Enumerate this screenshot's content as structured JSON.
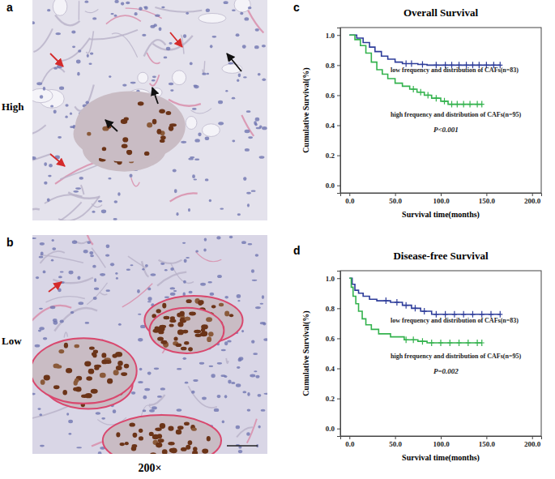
{
  "images": [
    {
      "letter": "a",
      "label": "High"
    },
    {
      "letter": "b",
      "label": "Low"
    }
  ],
  "magnification": "200×",
  "chart_data": [
    {
      "type": "step",
      "panel_label": "c",
      "title": "Overall Survival",
      "x_label": "Survival time(months)",
      "y_label": "Cumulative Survival(%)",
      "annotation": "P<0.001",
      "marker": "plus",
      "grid": false,
      "xlim": [
        -10,
        210
      ],
      "ylim": [
        -0.05,
        1.05
      ],
      "xticks": [
        {
          "value": 0,
          "label": "0.0"
        },
        {
          "value": 50,
          "label": "50.0"
        },
        {
          "value": 100,
          "label": "100.0"
        },
        {
          "value": 150,
          "label": "150.0"
        },
        {
          "value": 200,
          "label": "200.0"
        }
      ],
      "yticks": [
        {
          "value": 0,
          "label": "0.0"
        },
        {
          "value": 0.2,
          "label": "0.2"
        },
        {
          "value": 0.4,
          "label": "0.4"
        },
        {
          "value": 0.6,
          "label": "0.6"
        },
        {
          "value": 0.8,
          "label": "0.8"
        },
        {
          "value": 1,
          "label": "1.0"
        }
      ],
      "series": [
        {
          "name": "low frequency and distribution of CAFs(n=83)",
          "color": "#2e3d9a",
          "x": [
            0,
            8,
            15,
            22,
            28,
            35,
            42,
            50,
            58,
            75,
            85,
            165
          ],
          "values": [
            1.0,
            0.98,
            0.95,
            0.92,
            0.89,
            0.86,
            0.84,
            0.82,
            0.81,
            0.805,
            0.8,
            0.8
          ],
          "censor_x": [
            62,
            68,
            80,
            95,
            105,
            112,
            120,
            128,
            135,
            142,
            150,
            158,
            165
          ],
          "censor_values": [
            0.81,
            0.81,
            0.805,
            0.8,
            0.8,
            0.8,
            0.8,
            0.8,
            0.8,
            0.8,
            0.8,
            0.8,
            0.8
          ]
        },
        {
          "name": "high frequency and distribution of CAFs(n=95)",
          "color": "#33b24d",
          "x": [
            0,
            6,
            12,
            18,
            24,
            30,
            36,
            42,
            50,
            58,
            66,
            74,
            82,
            90,
            100,
            108,
            145
          ],
          "values": [
            1.0,
            0.97,
            0.93,
            0.88,
            0.82,
            0.77,
            0.74,
            0.71,
            0.68,
            0.66,
            0.64,
            0.62,
            0.6,
            0.58,
            0.56,
            0.54,
            0.54
          ],
          "censor_x": [
            70,
            78,
            86,
            95,
            104,
            112,
            118,
            125,
            132,
            140,
            145
          ],
          "censor_values": [
            0.64,
            0.62,
            0.6,
            0.58,
            0.56,
            0.54,
            0.54,
            0.54,
            0.54,
            0.54,
            0.54
          ]
        }
      ]
    },
    {
      "type": "step",
      "panel_label": "d",
      "title": "Disease-free Survival",
      "x_label": "Survival time(months)",
      "y_label": "Cumulative Survival(%)",
      "annotation": "P=0.002",
      "marker": "plus",
      "grid": false,
      "xlim": [
        -10,
        210
      ],
      "ylim": [
        -0.05,
        1.05
      ],
      "xticks": [
        {
          "value": 0,
          "label": "0.0"
        },
        {
          "value": 50,
          "label": "50.0"
        },
        {
          "value": 100,
          "label": "100.0"
        },
        {
          "value": 150,
          "label": "150.0"
        },
        {
          "value": 200,
          "label": "200.0"
        }
      ],
      "yticks": [
        {
          "value": 0,
          "label": "0.0"
        },
        {
          "value": 0.2,
          "label": "0.2"
        },
        {
          "value": 0.4,
          "label": "0.4"
        },
        {
          "value": 0.6,
          "label": "0.6"
        },
        {
          "value": 0.8,
          "label": "0.8"
        },
        {
          "value": 1,
          "label": "1.0"
        }
      ],
      "series": [
        {
          "name": "low frequency and distribution of CAFs(n=83)",
          "color": "#2e3d9a",
          "x": [
            0,
            3,
            6,
            10,
            15,
            22,
            30,
            45,
            58,
            68,
            78,
            90,
            165
          ],
          "values": [
            1.0,
            0.96,
            0.92,
            0.9,
            0.88,
            0.86,
            0.85,
            0.84,
            0.82,
            0.8,
            0.78,
            0.76,
            0.76
          ],
          "censor_x": [
            40,
            52,
            62,
            72,
            82,
            95,
            105,
            115,
            125,
            135,
            145,
            155,
            165
          ],
          "censor_values": [
            0.85,
            0.84,
            0.82,
            0.8,
            0.78,
            0.76,
            0.76,
            0.76,
            0.76,
            0.76,
            0.76,
            0.76,
            0.76
          ]
        },
        {
          "name": "high frequency and distribution of CAFs(n=95)",
          "color": "#33b24d",
          "x": [
            0,
            2,
            4,
            7,
            10,
            14,
            18,
            24,
            32,
            45,
            60,
            75,
            85,
            145
          ],
          "values": [
            1.0,
            0.94,
            0.88,
            0.83,
            0.78,
            0.73,
            0.69,
            0.66,
            0.63,
            0.61,
            0.59,
            0.58,
            0.57,
            0.57
          ],
          "censor_x": [
            62,
            70,
            80,
            90,
            100,
            110,
            120,
            130,
            140,
            145
          ],
          "censor_values": [
            0.59,
            0.59,
            0.58,
            0.57,
            0.57,
            0.57,
            0.57,
            0.57,
            0.57,
            0.57
          ]
        }
      ]
    }
  ]
}
